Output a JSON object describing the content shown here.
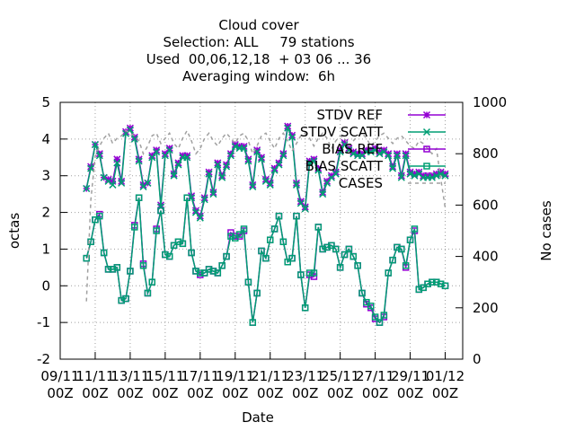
{
  "chart_data": {
    "type": "line",
    "title": [
      "Cloud cover",
      "Selection: ALL     79 stations",
      "Used  00,06,12,18  + 03 06 ... 36",
      "Averaging window:  6h"
    ],
    "xlabel": "Date",
    "ylabel": "octas",
    "y2label": "No cases",
    "ylim": [
      -2,
      5
    ],
    "y2lim": [
      0,
      1000
    ],
    "yticks": [
      "-2",
      "-1",
      "0",
      "1",
      "2",
      "3",
      "4",
      "5"
    ],
    "y2ticks": [
      "0",
      "200",
      "400",
      "600",
      "800",
      "1000"
    ],
    "xticks": [
      {
        "day": 9,
        "line1": "09/11",
        "line2": "00Z"
      },
      {
        "day": 11,
        "line1": "11/11",
        "line2": "00Z"
      },
      {
        "day": 13,
        "line1": "13/11",
        "line2": "00Z"
      },
      {
        "day": 15,
        "line1": "15/11",
        "line2": "00Z"
      },
      {
        "day": 17,
        "line1": "17/11",
        "line2": "00Z"
      },
      {
        "day": 19,
        "line1": "19/11",
        "line2": "00Z"
      },
      {
        "day": 21,
        "line1": "21/11",
        "line2": "00Z"
      },
      {
        "day": 23,
        "line1": "23/11",
        "line2": "00Z"
      },
      {
        "day": 25,
        "line1": "25/11",
        "line2": "00Z"
      },
      {
        "day": 27,
        "line1": "27/11",
        "line2": "00Z"
      },
      {
        "day": 29,
        "line1": "29/11",
        "line2": "00Z"
      },
      {
        "day": 31,
        "line1": "01/12",
        "line2": "00Z"
      }
    ],
    "xlim": [
      9,
      32
    ],
    "legend_position": "top-right",
    "grid": true,
    "x": [
      10.5,
      10.75,
      11,
      11.25,
      11.5,
      11.75,
      12,
      12.25,
      12.5,
      12.75,
      13,
      13.25,
      13.5,
      13.75,
      14,
      14.25,
      14.5,
      14.75,
      15,
      15.25,
      15.5,
      15.75,
      16,
      16.25,
      16.5,
      16.75,
      17,
      17.25,
      17.5,
      17.75,
      18,
      18.25,
      18.5,
      18.75,
      19,
      19.25,
      19.5,
      19.75,
      20,
      20.25,
      20.5,
      20.75,
      21,
      21.25,
      21.5,
      21.75,
      22,
      22.25,
      22.5,
      22.75,
      23,
      23.25,
      23.5,
      23.75,
      24,
      24.25,
      24.5,
      24.75,
      25,
      25.25,
      25.5,
      25.75,
      26,
      26.25,
      26.5,
      26.75,
      27,
      27.25,
      27.5,
      27.75,
      28,
      28.25,
      28.5,
      28.75,
      29,
      29.25,
      29.5,
      29.75,
      30,
      30.25,
      30.5,
      30.75,
      31
    ],
    "series": [
      {
        "name": "STDV REF",
        "color": "#9400d3",
        "marker": "x",
        "axis": "y1",
        "values": [
          2.65,
          3.25,
          3.85,
          3.6,
          2.95,
          2.9,
          2.85,
          3.45,
          2.85,
          4.2,
          4.3,
          4.05,
          3.45,
          2.75,
          2.8,
          3.55,
          3.7,
          2.2,
          3.6,
          3.75,
          3.05,
          3.35,
          3.55,
          3.55,
          2.45,
          2.05,
          1.9,
          2.4,
          3.1,
          2.55,
          3.35,
          3.0,
          3.3,
          3.6,
          3.85,
          3.8,
          3.8,
          3.45,
          2.75,
          3.7,
          3.5,
          2.9,
          2.8,
          3.2,
          3.35,
          3.6,
          4.35,
          4.1,
          2.8,
          2.3,
          2.15,
          3.4,
          3.45,
          3.2,
          2.55,
          2.85,
          3.0,
          3.1,
          3.7,
          3.9,
          3.75,
          3.65,
          3.6,
          3.6,
          3.7,
          3.7,
          3.75,
          3.65,
          3.7,
          3.6,
          3.25,
          3.6,
          3.0,
          3.6,
          3.1,
          3.05,
          3.1,
          3.0,
          3.0,
          3.0,
          3.05,
          3.1,
          3.05
        ]
      },
      {
        "name": "STDV SCATT",
        "color": "#009e73",
        "marker": "star",
        "axis": "y1",
        "values": [
          2.65,
          3.2,
          3.85,
          3.55,
          2.95,
          2.85,
          2.75,
          3.35,
          2.8,
          4.15,
          4.25,
          4.0,
          3.4,
          2.7,
          2.8,
          3.5,
          3.65,
          2.15,
          3.55,
          3.7,
          3.0,
          3.3,
          3.5,
          3.5,
          2.4,
          2.0,
          1.85,
          2.35,
          3.05,
          2.5,
          3.3,
          2.95,
          3.25,
          3.55,
          3.8,
          3.75,
          3.75,
          3.4,
          2.7,
          3.65,
          3.45,
          2.85,
          2.75,
          3.15,
          3.3,
          3.55,
          4.3,
          4.05,
          2.75,
          2.25,
          2.1,
          3.35,
          3.4,
          3.15,
          2.5,
          2.8,
          2.95,
          3.05,
          3.65,
          3.85,
          3.7,
          3.6,
          3.55,
          3.55,
          3.65,
          3.65,
          3.7,
          3.6,
          3.65,
          3.55,
          3.2,
          3.55,
          2.95,
          3.55,
          3.05,
          3.0,
          3.05,
          2.95,
          2.95,
          2.95,
          3.0,
          3.05,
          3.0
        ]
      },
      {
        "name": "BIAS REF",
        "color": "#9400d3",
        "marker": "square",
        "axis": "y1",
        "values": [
          0.75,
          1.2,
          1.8,
          1.95,
          0.9,
          0.45,
          0.45,
          0.5,
          -0.4,
          -0.35,
          0.4,
          1.65,
          2.4,
          0.6,
          -0.2,
          0.1,
          1.55,
          2.05,
          0.85,
          0.8,
          1.1,
          1.2,
          1.15,
          2.4,
          0.9,
          0.4,
          0.3,
          0.35,
          0.45,
          0.4,
          0.35,
          0.55,
          0.8,
          1.45,
          1.35,
          1.35,
          1.5,
          0.1,
          -1.0,
          -0.2,
          0.95,
          0.75,
          1.25,
          1.55,
          1.9,
          1.2,
          0.65,
          0.75,
          1.9,
          0.3,
          -0.6,
          0.3,
          0.25,
          1.6,
          1.0,
          1.05,
          1.1,
          1.0,
          0.5,
          0.85,
          1.0,
          0.8,
          0.55,
          -0.2,
          -0.5,
          -0.6,
          -0.9,
          -1.0,
          -0.85,
          0.35,
          0.7,
          1.05,
          1.0,
          0.5,
          1.25,
          1.5,
          -0.1,
          -0.05,
          0.05,
          0.1,
          0.1,
          0.05,
          0.0
        ]
      },
      {
        "name": "BIAS SCATT",
        "color": "#009e73",
        "marker": "square",
        "axis": "y1",
        "values": [
          0.75,
          1.2,
          1.8,
          1.9,
          0.9,
          0.45,
          0.45,
          0.5,
          -0.4,
          -0.35,
          0.4,
          1.6,
          2.4,
          0.55,
          -0.2,
          0.1,
          1.5,
          2.05,
          0.85,
          0.8,
          1.1,
          1.2,
          1.15,
          2.4,
          0.9,
          0.4,
          0.35,
          0.35,
          0.45,
          0.4,
          0.35,
          0.55,
          0.8,
          1.35,
          1.3,
          1.4,
          1.55,
          0.1,
          -1.0,
          -0.2,
          0.95,
          0.75,
          1.25,
          1.55,
          1.9,
          1.2,
          0.65,
          0.75,
          1.9,
          0.3,
          -0.6,
          0.35,
          0.35,
          1.6,
          1.0,
          1.05,
          1.1,
          1.0,
          0.5,
          0.85,
          1.0,
          0.8,
          0.55,
          -0.2,
          -0.45,
          -0.55,
          -0.85,
          -1.0,
          -0.8,
          0.35,
          0.7,
          1.05,
          1.0,
          0.55,
          1.25,
          1.55,
          -0.1,
          -0.05,
          0.05,
          0.1,
          0.1,
          0.05,
          0.0
        ]
      },
      {
        "name": "CASES",
        "color": "#a0a0a0",
        "marker": "none",
        "dash": true,
        "axis": "y2",
        "values": [
          225,
          620,
          790,
          830,
          860,
          880,
          840,
          860,
          870,
          890,
          880,
          870,
          850,
          800,
          830,
          870,
          880,
          840,
          860,
          880,
          840,
          820,
          860,
          890,
          850,
          800,
          820,
          860,
          880,
          850,
          830,
          860,
          880,
          860,
          840,
          870,
          880,
          850,
          800,
          830,
          870,
          880,
          850,
          820,
          860,
          880,
          850,
          810,
          840,
          870,
          880,
          860,
          830,
          860,
          880,
          860,
          820,
          850,
          870,
          860,
          830,
          850,
          870,
          880,
          860,
          830,
          850,
          870,
          880,
          860,
          840,
          860,
          870,
          850,
          830,
          820,
          850,
          840,
          820,
          800,
          820,
          700,
          590
        ]
      }
    ]
  }
}
